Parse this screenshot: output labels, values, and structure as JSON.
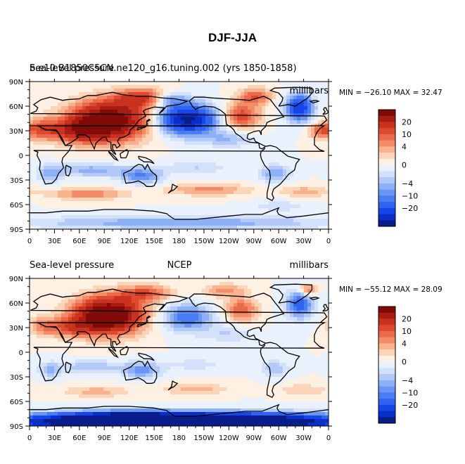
{
  "title": "DJF-JJA",
  "chart_data": [
    {
      "type": "heatmap",
      "left_label": "Sea-level pressure",
      "case_label": "b.e10.B1850C5CN.ne120_g16.tuning.002 (yrs 1850-1858)",
      "right_label": "millibars",
      "stats": "MIN = −26.10 MAX =  32.47",
      "min": -26.1,
      "max": 32.47,
      "x_ticks": [
        "0",
        "30E",
        "60E",
        "90E",
        "120E",
        "150E",
        "180",
        "150W",
        "120W",
        "90W",
        "60W",
        "30W",
        "0"
      ],
      "y_ticks": [
        "90N",
        "60N",
        "30N",
        "0",
        "30S",
        "60S",
        "90S"
      ],
      "xlim": [
        0,
        360
      ],
      "ylim": [
        -90,
        90
      ],
      "features": [
        {
          "lon": 95,
          "lat": 42,
          "amp": 26,
          "rlon": 45,
          "rlat": 24
        },
        {
          "lon": 55,
          "lat": 30,
          "amp": 12,
          "rlon": 30,
          "rlat": 14
        },
        {
          "lon": 15,
          "lat": 32,
          "amp": 9,
          "rlon": 18,
          "rlat": 14
        },
        {
          "lon": 135,
          "lat": 70,
          "amp": 12,
          "rlon": 30,
          "rlat": 12
        },
        {
          "lon": 255,
          "lat": 48,
          "amp": 12,
          "rlon": 22,
          "rlat": 16
        },
        {
          "lon": 272,
          "lat": 72,
          "amp": 10,
          "rlon": 20,
          "rlat": 10
        },
        {
          "lon": 350,
          "lat": 30,
          "amp": 9,
          "rlon": 14,
          "rlat": 10
        },
        {
          "lon": 190,
          "lat": 44,
          "amp": -26,
          "rlon": 34,
          "rlat": 18
        },
        {
          "lon": 325,
          "lat": 58,
          "amp": -20,
          "rlon": 16,
          "rlat": 16
        },
        {
          "lon": 170,
          "lat": 68,
          "amp": -8,
          "rlon": 20,
          "rlat": 8
        },
        {
          "lon": 240,
          "lat": 20,
          "amp": -6,
          "rlon": 30,
          "rlat": 10
        },
        {
          "lon": 135,
          "lat": -25,
          "amp": -10,
          "rlon": 25,
          "rlat": 10
        },
        {
          "lon": 75,
          "lat": -18,
          "amp": -7,
          "rlon": 40,
          "rlat": 8
        },
        {
          "lon": 25,
          "lat": -22,
          "amp": -7,
          "rlon": 15,
          "rlat": 10
        },
        {
          "lon": 295,
          "lat": -22,
          "amp": -8,
          "rlon": 18,
          "rlat": 10
        },
        {
          "lon": 200,
          "lat": -15,
          "amp": -4,
          "rlon": 40,
          "rlat": 8
        },
        {
          "lon": 70,
          "lat": -47,
          "amp": 8,
          "rlon": 45,
          "rlat": 7
        },
        {
          "lon": 215,
          "lat": -42,
          "amp": 7,
          "rlon": 50,
          "rlat": 7
        },
        {
          "lon": 330,
          "lat": -44,
          "amp": 5,
          "rlon": 30,
          "rlat": 7
        },
        {
          "lon": 180,
          "lat": -82,
          "amp": -8,
          "rlon": 180,
          "rlat": 8
        },
        {
          "lon": 300,
          "lat": -62,
          "amp": -4,
          "rlon": 30,
          "rlat": 6
        }
      ]
    },
    {
      "type": "heatmap",
      "left_label": "Sea-level pressure",
      "case_label": "NCEP",
      "right_label": "millibars",
      "stats": "MIN = −55.12 MAX =  28.09",
      "min": -55.12,
      "max": 28.09,
      "x_ticks": [
        "0",
        "30E",
        "60E",
        "90E",
        "120E",
        "150E",
        "180",
        "150W",
        "120W",
        "90W",
        "60W",
        "30W",
        "0"
      ],
      "y_ticks": [
        "90N",
        "60N",
        "30N",
        "0",
        "30S",
        "60S",
        "90S"
      ],
      "xlim": [
        0,
        360
      ],
      "ylim": [
        -90,
        90
      ],
      "features": [
        {
          "lon": 95,
          "lat": 45,
          "amp": 28,
          "rlon": 40,
          "rlat": 22
        },
        {
          "lon": 50,
          "lat": 30,
          "amp": 9,
          "rlon": 30,
          "rlat": 12
        },
        {
          "lon": 15,
          "lat": 32,
          "amp": 6,
          "rlon": 16,
          "rlat": 12
        },
        {
          "lon": 140,
          "lat": 72,
          "amp": 10,
          "rlon": 30,
          "rlat": 10
        },
        {
          "lon": 255,
          "lat": 52,
          "amp": 10,
          "rlon": 20,
          "rlat": 14
        },
        {
          "lon": 235,
          "lat": 75,
          "amp": 7,
          "rlon": 25,
          "rlat": 8
        },
        {
          "lon": 335,
          "lat": 76,
          "amp": 10,
          "rlon": 10,
          "rlat": 6
        },
        {
          "lon": 190,
          "lat": 42,
          "amp": -12,
          "rlon": 30,
          "rlat": 16
        },
        {
          "lon": 325,
          "lat": 58,
          "amp": -14,
          "rlon": 16,
          "rlat": 16
        },
        {
          "lon": 240,
          "lat": 22,
          "amp": -4,
          "rlon": 30,
          "rlat": 10
        },
        {
          "lon": 135,
          "lat": -22,
          "amp": -9,
          "rlon": 22,
          "rlat": 10
        },
        {
          "lon": 75,
          "lat": -18,
          "amp": -6,
          "rlon": 35,
          "rlat": 8
        },
        {
          "lon": 25,
          "lat": -22,
          "amp": -6,
          "rlon": 14,
          "rlat": 10
        },
        {
          "lon": 295,
          "lat": -20,
          "amp": -6,
          "rlon": 16,
          "rlat": 10
        },
        {
          "lon": 200,
          "lat": -15,
          "amp": -3,
          "rlon": 40,
          "rlat": 8
        },
        {
          "lon": 80,
          "lat": -48,
          "amp": 5,
          "rlon": 40,
          "rlat": 7
        },
        {
          "lon": 200,
          "lat": -45,
          "amp": 5,
          "rlon": 40,
          "rlat": 7
        },
        {
          "lon": 330,
          "lat": -46,
          "amp": 4,
          "rlon": 30,
          "rlat": 7
        },
        {
          "lon": 180,
          "lat": -85,
          "amp": -55,
          "rlon": 180,
          "rlat": 10
        },
        {
          "lon": 110,
          "lat": -78,
          "amp": -10,
          "rlon": 60,
          "rlat": 6
        }
      ]
    }
  ],
  "colorbar": {
    "labels": [
      "20",
      "10",
      "4",
      "0",
      "−4",
      "−10",
      "−20"
    ],
    "levels": [
      -24,
      -20,
      -16,
      -12,
      -10,
      -8,
      -6,
      -4,
      -2,
      0,
      2,
      4,
      6,
      8,
      10,
      12,
      16,
      20,
      24
    ],
    "colors": [
      "#081d8a",
      "#0a2fc8",
      "#1745e8",
      "#2f63f0",
      "#4a7cf2",
      "#6a95f4",
      "#8eb0f6",
      "#b3caf8",
      "#d3e2fa",
      "#e8f1fc",
      "#fff0e4",
      "#fcd5b8",
      "#f9b28e",
      "#f48c6a",
      "#ec6a4c",
      "#de4a30",
      "#c8321e",
      "#a91c12",
      "#820a08"
    ]
  }
}
